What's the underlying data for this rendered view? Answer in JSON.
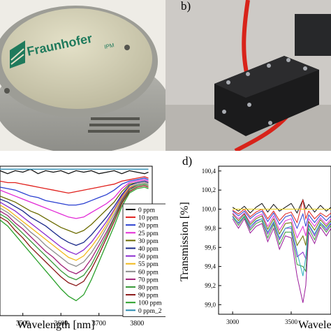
{
  "panels": {
    "b_label": "b)",
    "d_label": "d)",
    "logo_text": "Fraunhofer",
    "logo_sub": "IPM"
  },
  "colors": {
    "device_shell": "#c8c8c0",
    "device_lid": "#d7d4b8",
    "logo_green": "#1f7a5c",
    "tube_red": "#d8231a",
    "block_black": "#1b1b1c"
  },
  "chart_data": [
    {
      "type": "line",
      "xlabel": "Wavelength [nm]",
      "ylabel": "",
      "xlim": [
        3440,
        3840
      ],
      "ylim": [
        0,
        1
      ],
      "x_ticks": [
        3500,
        3600,
        3700,
        3800
      ],
      "grid": false,
      "legend_position": "bottom-right",
      "x": [
        3440,
        3460,
        3480,
        3500,
        3520,
        3540,
        3560,
        3580,
        3600,
        3620,
        3640,
        3660,
        3680,
        3700,
        3720,
        3740,
        3760,
        3780,
        3800,
        3820,
        3830
      ],
      "series": [
        {
          "name": "0 ppm",
          "color": "#111111",
          "values": [
            0.97,
            0.95,
            0.97,
            0.96,
            0.98,
            0.95,
            0.97,
            0.96,
            0.97,
            0.95,
            0.97,
            0.96,
            0.97,
            0.95,
            0.96,
            0.97,
            0.95,
            0.97,
            0.96,
            0.95,
            0.96
          ]
        },
        {
          "name": "10 ppm",
          "color": "#e0201c",
          "values": [
            0.9,
            0.89,
            0.89,
            0.88,
            0.87,
            0.86,
            0.85,
            0.84,
            0.83,
            0.82,
            0.83,
            0.84,
            0.85,
            0.86,
            0.87,
            0.88,
            0.9,
            0.91,
            0.92,
            0.93,
            0.92
          ]
        },
        {
          "name": "20 ppm",
          "color": "#2a3fd0",
          "values": [
            0.86,
            0.85,
            0.84,
            0.82,
            0.8,
            0.79,
            0.77,
            0.76,
            0.75,
            0.74,
            0.74,
            0.75,
            0.77,
            0.79,
            0.81,
            0.84,
            0.88,
            0.9,
            0.91,
            0.92,
            0.91
          ]
        },
        {
          "name": "25 ppm",
          "color": "#e22ad6",
          "values": [
            0.84,
            0.82,
            0.8,
            0.78,
            0.76,
            0.74,
            0.72,
            0.7,
            0.68,
            0.66,
            0.65,
            0.66,
            0.69,
            0.72,
            0.75,
            0.79,
            0.85,
            0.89,
            0.9,
            0.91,
            0.9
          ]
        },
        {
          "name": "30 ppm",
          "color": "#6b6b00",
          "values": [
            0.8,
            0.78,
            0.76,
            0.73,
            0.7,
            0.68,
            0.65,
            0.62,
            0.59,
            0.57,
            0.55,
            0.57,
            0.61,
            0.66,
            0.71,
            0.76,
            0.83,
            0.88,
            0.89,
            0.9,
            0.89
          ]
        },
        {
          "name": "40 ppm",
          "color": "#1b2a8a",
          "values": [
            0.78,
            0.76,
            0.73,
            0.7,
            0.66,
            0.63,
            0.6,
            0.56,
            0.52,
            0.49,
            0.47,
            0.49,
            0.54,
            0.6,
            0.66,
            0.73,
            0.81,
            0.87,
            0.89,
            0.9,
            0.89
          ]
        },
        {
          "name": "50 ppm",
          "color": "#8a2bd0",
          "values": [
            0.76,
            0.73,
            0.7,
            0.66,
            0.62,
            0.58,
            0.54,
            0.5,
            0.46,
            0.43,
            0.41,
            0.44,
            0.49,
            0.56,
            0.63,
            0.71,
            0.8,
            0.86,
            0.88,
            0.89,
            0.88
          ]
        },
        {
          "name": "55 ppm",
          "color": "#f2b91c",
          "values": [
            0.74,
            0.71,
            0.67,
            0.63,
            0.59,
            0.55,
            0.51,
            0.47,
            0.43,
            0.39,
            0.37,
            0.4,
            0.46,
            0.53,
            0.61,
            0.7,
            0.79,
            0.86,
            0.88,
            0.89,
            0.88
          ]
        },
        {
          "name": "60 ppm",
          "color": "#8c8c8c",
          "values": [
            0.72,
            0.69,
            0.65,
            0.61,
            0.56,
            0.52,
            0.47,
            0.43,
            0.39,
            0.35,
            0.33,
            0.36,
            0.42,
            0.5,
            0.59,
            0.68,
            0.78,
            0.85,
            0.88,
            0.89,
            0.88
          ]
        },
        {
          "name": "70 ppm",
          "color": "#a02078",
          "values": [
            0.7,
            0.67,
            0.62,
            0.58,
            0.53,
            0.48,
            0.43,
            0.39,
            0.34,
            0.3,
            0.28,
            0.31,
            0.38,
            0.47,
            0.56,
            0.66,
            0.77,
            0.85,
            0.87,
            0.88,
            0.87
          ]
        },
        {
          "name": "80 ppm",
          "color": "#3a9a3a",
          "values": [
            0.68,
            0.65,
            0.6,
            0.55,
            0.5,
            0.45,
            0.4,
            0.35,
            0.3,
            0.26,
            0.24,
            0.27,
            0.34,
            0.44,
            0.54,
            0.65,
            0.76,
            0.84,
            0.87,
            0.88,
            0.87
          ]
        },
        {
          "name": "90 ppm",
          "color": "#8a1616",
          "values": [
            0.66,
            0.63,
            0.57,
            0.52,
            0.46,
            0.41,
            0.36,
            0.31,
            0.26,
            0.22,
            0.2,
            0.23,
            0.31,
            0.41,
            0.52,
            0.63,
            0.75,
            0.83,
            0.86,
            0.87,
            0.86
          ]
        },
        {
          "name": "100 ppm",
          "color": "#2aa02a",
          "values": [
            0.64,
            0.6,
            0.54,
            0.48,
            0.42,
            0.36,
            0.3,
            0.24,
            0.18,
            0.13,
            0.1,
            0.14,
            0.24,
            0.36,
            0.48,
            0.6,
            0.73,
            0.82,
            0.85,
            0.86,
            0.85
          ]
        },
        {
          "name": "0 ppm_2",
          "color": "#2a8ab0",
          "values": [
            0.98,
            0.98,
            0.98,
            0.98,
            0.98,
            0.98,
            0.98,
            0.98,
            0.98,
            0.98,
            0.98,
            0.98,
            0.98,
            0.98,
            0.98,
            0.98,
            0.98,
            0.98,
            0.98,
            0.98,
            0.98
          ]
        }
      ]
    },
    {
      "type": "line",
      "xlabel": "Wavelength",
      "ylabel": "Transmission [%]",
      "xlim": [
        2880,
        3840
      ],
      "ylim": [
        98.9,
        100.45
      ],
      "x_ticks": [
        3000,
        3500
      ],
      "y_ticks": [
        "100,4",
        "100,2",
        "100,0",
        "99,8",
        "99,6",
        "99,4",
        "99,2",
        "99,0"
      ],
      "y_tick_values": [
        100.4,
        100.2,
        100.0,
        99.8,
        99.6,
        99.4,
        99.2,
        99.0
      ],
      "grid": false,
      "x": [
        3000,
        3050,
        3100,
        3150,
        3200,
        3250,
        3300,
        3350,
        3400,
        3450,
        3500,
        3550,
        3600,
        3625,
        3650,
        3700,
        3750,
        3800,
        3840
      ],
      "series": [
        {
          "color": "#111111",
          "values": [
            100.02,
            99.98,
            100.03,
            99.96,
            100.02,
            100.06,
            99.97,
            100.05,
            99.98,
            100.02,
            100.06,
            99.96,
            100.1,
            100.0,
            100.05,
            99.97,
            100.04,
            99.98,
            100.02
          ]
        },
        {
          "color": "#e0201c",
          "values": [
            99.99,
            99.95,
            100.0,
            99.92,
            99.97,
            100.0,
            99.9,
            99.98,
            99.88,
            99.95,
            99.97,
            99.86,
            100.1,
            99.9,
            99.98,
            99.9,
            99.96,
            99.92,
            99.96
          ]
        },
        {
          "color": "#2a3fd0",
          "values": [
            99.98,
            99.93,
            99.98,
            99.9,
            99.95,
            99.98,
            99.87,
            99.96,
            99.84,
            99.92,
            99.94,
            99.8,
            99.95,
            99.82,
            99.94,
            99.86,
            99.94,
            99.88,
            99.93
          ]
        },
        {
          "color": "#e22ad6",
          "values": [
            99.96,
            99.9,
            99.96,
            99.86,
            99.92,
            99.95,
            99.82,
            99.93,
            99.78,
            99.88,
            99.9,
            99.7,
            99.82,
            99.72,
            99.9,
            99.82,
            99.91,
            99.84,
            99.9
          ]
        },
        {
          "color": "#6b6b00",
          "values": [
            99.95,
            99.88,
            99.95,
            99.84,
            99.9,
            99.93,
            99.79,
            99.9,
            99.74,
            99.85,
            99.86,
            99.62,
            99.72,
            99.62,
            99.87,
            99.78,
            99.89,
            99.82,
            99.88
          ]
        },
        {
          "color": "#8a2bd0",
          "values": [
            99.93,
            99.85,
            99.93,
            99.8,
            99.87,
            99.9,
            99.74,
            99.86,
            99.68,
            99.8,
            99.8,
            99.5,
            99.55,
            99.48,
            99.83,
            99.72,
            99.86,
            99.78,
            99.85
          ]
        },
        {
          "color": "#3a9a3a",
          "values": [
            99.92,
            99.83,
            99.92,
            99.78,
            99.85,
            99.88,
            99.7,
            99.84,
            99.63,
            99.76,
            99.76,
            99.42,
            99.4,
            99.35,
            99.8,
            99.68,
            99.84,
            99.76,
            99.83
          ]
        },
        {
          "color": "#9a1a9a",
          "values": [
            99.9,
            99.8,
            99.9,
            99.75,
            99.82,
            99.85,
            99.66,
            99.8,
            99.58,
            99.72,
            99.7,
            99.3,
            99.02,
            99.2,
            99.76,
            99.64,
            99.81,
            99.72,
            99.8
          ]
        },
        {
          "color": "#2ab0c0",
          "values": [
            99.92,
            99.86,
            99.93,
            99.82,
            99.88,
            99.9,
            99.76,
            99.87,
            99.7,
            99.8,
            99.82,
            99.55,
            99.3,
            99.5,
            99.84,
            99.74,
            99.86,
            99.8,
            99.86
          ]
        },
        {
          "color": "#e8d020",
          "values": [
            100.0,
            100.0,
            100.0,
            100.0,
            100.0,
            100.0,
            100.0,
            100.0,
            100.0,
            100.0,
            100.0,
            100.0,
            100.0,
            100.0,
            100.0,
            100.0,
            100.0,
            100.0,
            100.0
          ]
        }
      ]
    }
  ]
}
